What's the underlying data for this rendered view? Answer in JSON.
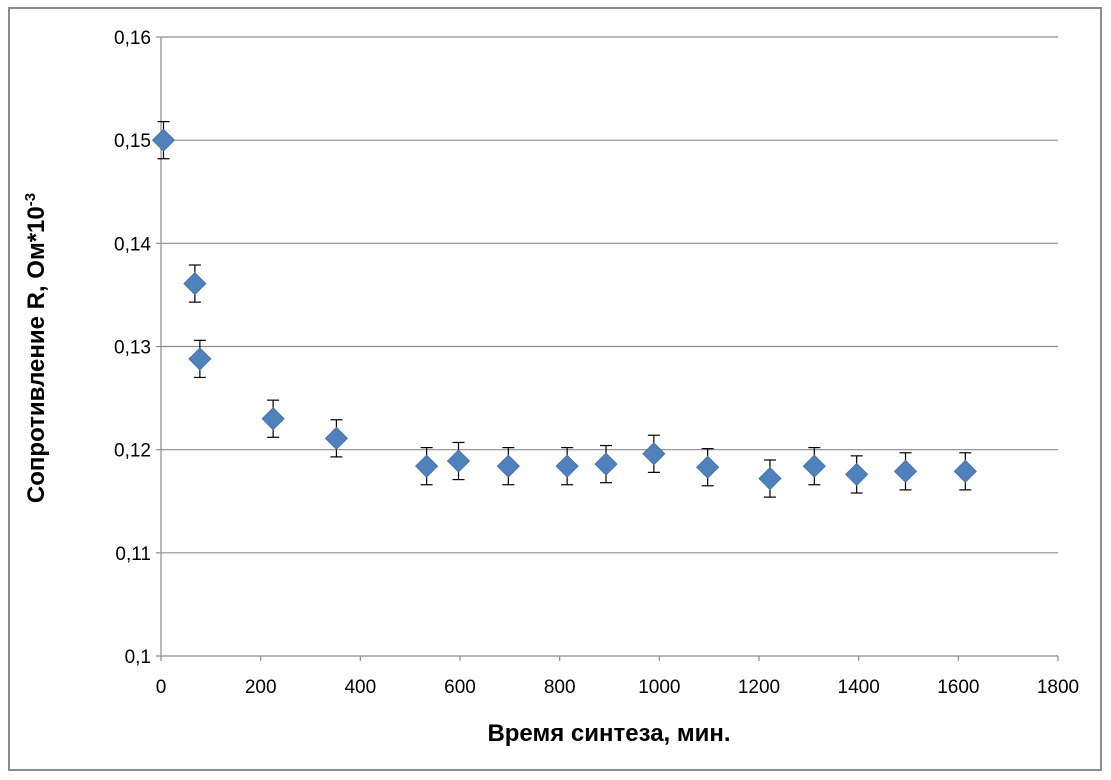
{
  "chart_data": {
    "type": "scatter",
    "xlabel": "Время синтеза, мин.",
    "ylabel": {
      "main": "Сопротивление R, Ом*10",
      "superscript": "-3"
    },
    "xlim": [
      0,
      1800
    ],
    "ylim": [
      0.1,
      0.16
    ],
    "x_ticks": [
      0,
      200,
      400,
      600,
      800,
      1000,
      1200,
      1400,
      1600,
      1800
    ],
    "x_tick_labels": [
      "0",
      "200",
      "400",
      "600",
      "800",
      "1000",
      "1200",
      "1400",
      "1600",
      "1800"
    ],
    "y_ticks": [
      0.1,
      0.11,
      0.12,
      0.13,
      0.14,
      0.15,
      0.16
    ],
    "y_tick_labels": [
      "0,1",
      "0,11",
      "0,12",
      "0,13",
      "0,14",
      "0,15",
      "0,16"
    ],
    "grid": "horizontal",
    "marker": "diamond",
    "marker_color": "#4f81bd",
    "error_bar_color": "#000000",
    "error": 0.0018,
    "points": [
      {
        "x": 5,
        "y": 0.15
      },
      {
        "x": 68,
        "y": 0.1361
      },
      {
        "x": 78,
        "y": 0.1288
      },
      {
        "x": 225,
        "y": 0.123
      },
      {
        "x": 352,
        "y": 0.1211
      },
      {
        "x": 533,
        "y": 0.1184
      },
      {
        "x": 597,
        "y": 0.1189
      },
      {
        "x": 697,
        "y": 0.1184
      },
      {
        "x": 815,
        "y": 0.1184
      },
      {
        "x": 893,
        "y": 0.1186
      },
      {
        "x": 989,
        "y": 0.1196
      },
      {
        "x": 1097,
        "y": 0.1183
      },
      {
        "x": 1222,
        "y": 0.1172
      },
      {
        "x": 1311,
        "y": 0.1184
      },
      {
        "x": 1396,
        "y": 0.1176
      },
      {
        "x": 1494,
        "y": 0.1179
      },
      {
        "x": 1614,
        "y": 0.1179
      }
    ]
  }
}
